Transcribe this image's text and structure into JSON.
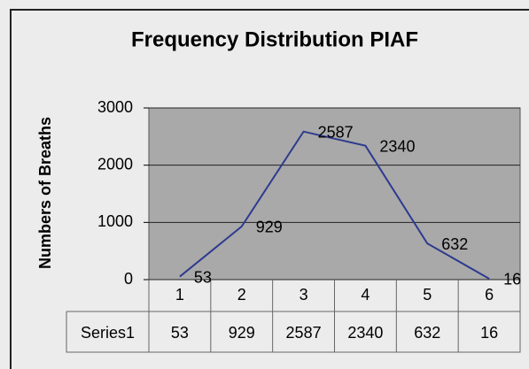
{
  "chart_data": {
    "type": "line",
    "title": "Frequency Distribution PIAF",
    "y_label": "Numbers of Breaths",
    "categories": [
      "1",
      "2",
      "3",
      "4",
      "5",
      "6"
    ],
    "series": [
      {
        "name": "Series1",
        "color": "#2e3b8f",
        "values": [
          53,
          929,
          2587,
          2340,
          632,
          16
        ]
      }
    ],
    "ylim": [
      0,
      3000
    ],
    "yticks": [
      0,
      1000,
      2000,
      3000
    ],
    "grid": true,
    "data_labels": true,
    "data_table": true
  }
}
